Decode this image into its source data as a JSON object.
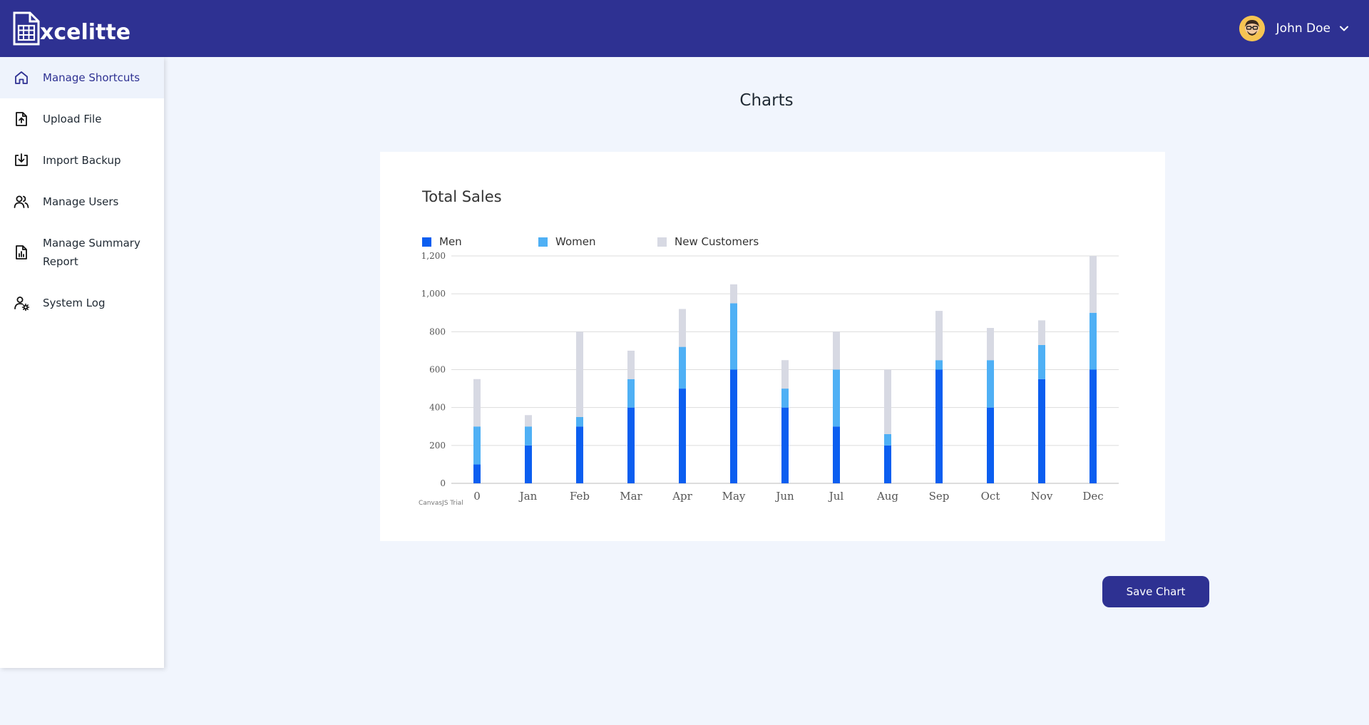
{
  "app": {
    "logo_text": "xcelitte",
    "logo_icon": "spreadsheet-document-icon"
  },
  "user": {
    "name": "John Doe",
    "avatar_icon": "avatar-icon",
    "menu_icon": "chevron-down-icon"
  },
  "sidebar": {
    "items": [
      {
        "label": "Manage Shortcuts",
        "icon": "home-icon",
        "active": true
      },
      {
        "label": "Upload File",
        "icon": "file-upload-icon"
      },
      {
        "label": "Import Backup",
        "icon": "import-icon"
      },
      {
        "label": "Manage Users",
        "icon": "users-icon"
      },
      {
        "label": "Manage Summary Report",
        "icon": "report-icon"
      },
      {
        "label": "System Log",
        "icon": "user-gear-icon"
      }
    ]
  },
  "page": {
    "title": "Charts",
    "save_label": "Save Chart"
  },
  "colors": {
    "header": "#2e3192",
    "men": "#0b5ef0",
    "women": "#4fb0f5",
    "new_customers": "#d7d9e3"
  },
  "chart_data": {
    "type": "bar",
    "stacked": true,
    "title": "Total Sales",
    "watermark": "CanvasJS Trial",
    "categories": [
      "0",
      "Jan",
      "Feb",
      "Mar",
      "Apr",
      "May",
      "Jun",
      "Jul",
      "Aug",
      "Sep",
      "Oct",
      "Nov",
      "Dec"
    ],
    "series": [
      {
        "name": "Men",
        "color": "#0b5ef0",
        "values": [
          100,
          200,
          300,
          400,
          500,
          600,
          400,
          300,
          200,
          600,
          400,
          550,
          600
        ]
      },
      {
        "name": "Women",
        "color": "#4fb0f5",
        "values": [
          200,
          100,
          50,
          150,
          220,
          350,
          100,
          300,
          60,
          50,
          250,
          180,
          300
        ]
      },
      {
        "name": "New Customers",
        "color": "#d7d9e3",
        "values": [
          250,
          60,
          450,
          150,
          200,
          100,
          150,
          200,
          340,
          260,
          170,
          130,
          300
        ]
      }
    ],
    "ylim": [
      0,
      1200
    ],
    "yticks": [
      "0",
      "200",
      "400",
      "600",
      "800",
      "1,000",
      "1,200"
    ],
    "grid": true,
    "legend": "top-left"
  }
}
